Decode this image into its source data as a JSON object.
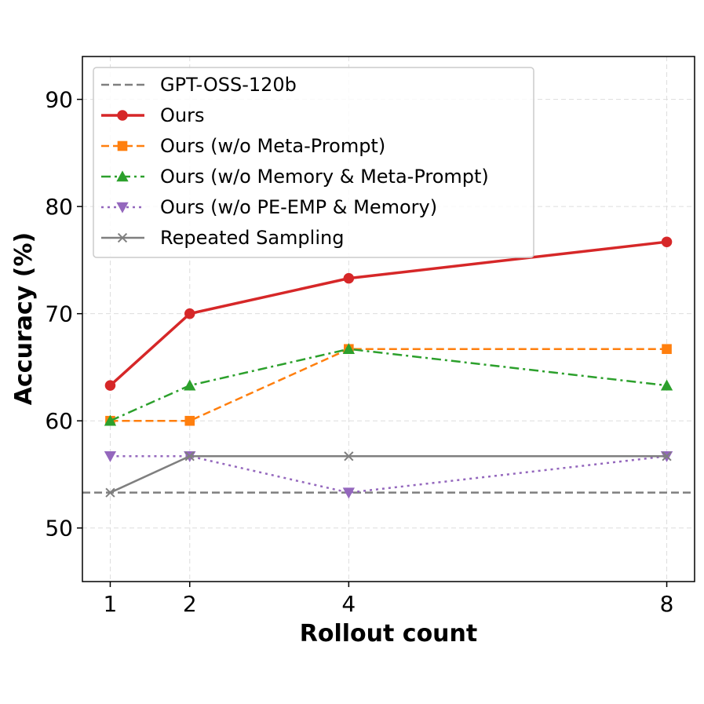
{
  "chart_data": {
    "type": "line",
    "title": "",
    "xlabel": "Rollout count",
    "ylabel": "Accuracy (%)",
    "x": [
      1,
      2,
      4,
      8
    ],
    "xticks": [
      "1",
      "2",
      "4",
      "8"
    ],
    "yticks": [
      "50",
      "60",
      "70",
      "80",
      "90"
    ],
    "xlim": [
      0.65,
      8.35
    ],
    "ylim": [
      45,
      94
    ],
    "grid": true,
    "legend_position": "top-left",
    "baseline": {
      "name": "GPT-OSS-120b",
      "value": 53.3,
      "color": "#7f7f7f"
    },
    "series": [
      {
        "name": "Ours",
        "values": [
          63.3,
          70.0,
          73.3,
          76.7
        ],
        "color": "#d62728",
        "marker": "circle",
        "dash": "solid"
      },
      {
        "name": "Ours (w/o Meta-Prompt)",
        "values": [
          60.0,
          60.0,
          66.7,
          66.7
        ],
        "color": "#ff7f0e",
        "marker": "square",
        "dash": "dashed"
      },
      {
        "name": "Ours (w/o Memory & Meta-Prompt)",
        "values": [
          60.0,
          63.3,
          66.7,
          63.3
        ],
        "color": "#2ca02c",
        "marker": "triangle-up",
        "dash": "dashdot"
      },
      {
        "name": "Ours (w/o PE-EMP & Memory)",
        "values": [
          56.7,
          56.7,
          53.3,
          56.7
        ],
        "color": "#9467bd",
        "marker": "triangle-down",
        "dash": "dotted"
      },
      {
        "name": "Repeated Sampling",
        "values": [
          53.3,
          56.7,
          56.7,
          56.7
        ],
        "color": "#7f7f7f",
        "marker": "x",
        "dash": "solid"
      }
    ]
  }
}
